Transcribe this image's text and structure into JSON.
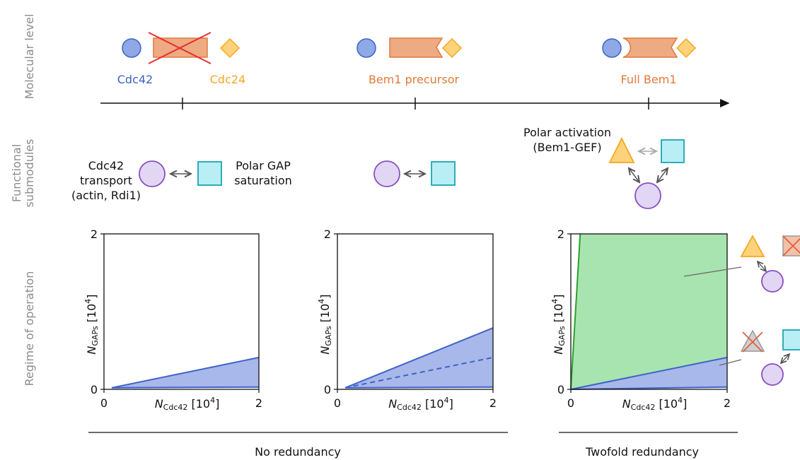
{
  "row_labels": {
    "molecular": "Molecular level",
    "functional_1": "Functional",
    "functional_2": "submodules",
    "regime": "Regime of operation"
  },
  "molecular": {
    "cdc42": "Cdc42",
    "cdc24": "Cdc24",
    "bem1_precursor": "Bem1 precursor",
    "full_bem1": "Full Bem1"
  },
  "submodules": {
    "transport_1": "Cdc42",
    "transport_2": "transport",
    "transport_3": "(actin, Rdi1)",
    "gap_1": "Polar GAP",
    "gap_2": "saturation",
    "polar_1": "Polar activation",
    "polar_2": "(Bem1-GEF)"
  },
  "bottom_labels": {
    "no_redundancy": "No redundancy",
    "twofold_redundancy": "Twofold redundancy"
  },
  "colors": {
    "cdc42": "#3d62c8",
    "cdc24": "#f5a623",
    "bem1": "#e07a3a",
    "transport": "#8a4fc0",
    "gap": "#1aa6b5",
    "polar": "#f0a030",
    "blue_region": "#3d62c8",
    "green_region": "#2ca02c"
  },
  "chart_data": [
    {
      "type": "area",
      "panel": "No redundancy (1)",
      "xlabel": "N_Cdc42 [10^4]",
      "ylabel": "N_GAPs [10^4]",
      "xlim": [
        0,
        2
      ],
      "ylim": [
        0,
        2
      ],
      "xticks": [
        "0",
        "2"
      ],
      "yticks": [
        "0",
        "2"
      ],
      "regions": [
        {
          "color": "blue",
          "boundary": [
            [
              0.1,
              0.02
            ],
            [
              2,
              0.41
            ]
          ],
          "lower": [
            [
              0.1,
              0.02
            ],
            [
              2,
              0.03
            ]
          ]
        }
      ]
    },
    {
      "type": "area",
      "panel": "No redundancy (2)",
      "xlabel": "N_Cdc42 [10^4]",
      "ylabel": "N_GAPs [10^4]",
      "xlim": [
        0,
        2
      ],
      "ylim": [
        0,
        2
      ],
      "xticks": [
        "0",
        "2"
      ],
      "yticks": [
        "0",
        "2"
      ],
      "regions": [
        {
          "color": "blue",
          "boundary": [
            [
              0.1,
              0.02
            ],
            [
              2,
              0.79
            ]
          ],
          "lower": [
            [
              0.1,
              0.02
            ],
            [
              2,
              0.03
            ]
          ],
          "dashed": [
            [
              0.1,
              0.02
            ],
            [
              2,
              0.41
            ]
          ]
        }
      ]
    },
    {
      "type": "area",
      "panel": "Twofold redundancy",
      "xlabel": "N_Cdc42 [10^4]",
      "ylabel": "N_GAPs [10^4]",
      "xlim": [
        0,
        2
      ],
      "ylim": [
        0,
        2
      ],
      "xticks": [
        "0",
        "2"
      ],
      "yticks": [
        "0",
        "2"
      ],
      "regions": [
        {
          "color": "green",
          "boundary_upper": [
            [
              0.0,
              0.0
            ],
            [
              0.12,
              2
            ]
          ],
          "boundary_lower": [
            [
              0.0,
              0.0
            ],
            [
              2,
              0.41
            ]
          ]
        },
        {
          "color": "blue",
          "boundary": [
            [
              0.0,
              0.0
            ],
            [
              2,
              0.41
            ]
          ],
          "lower": [
            [
              0.0,
              0.0
            ],
            [
              2,
              0.03
            ]
          ]
        }
      ]
    }
  ]
}
